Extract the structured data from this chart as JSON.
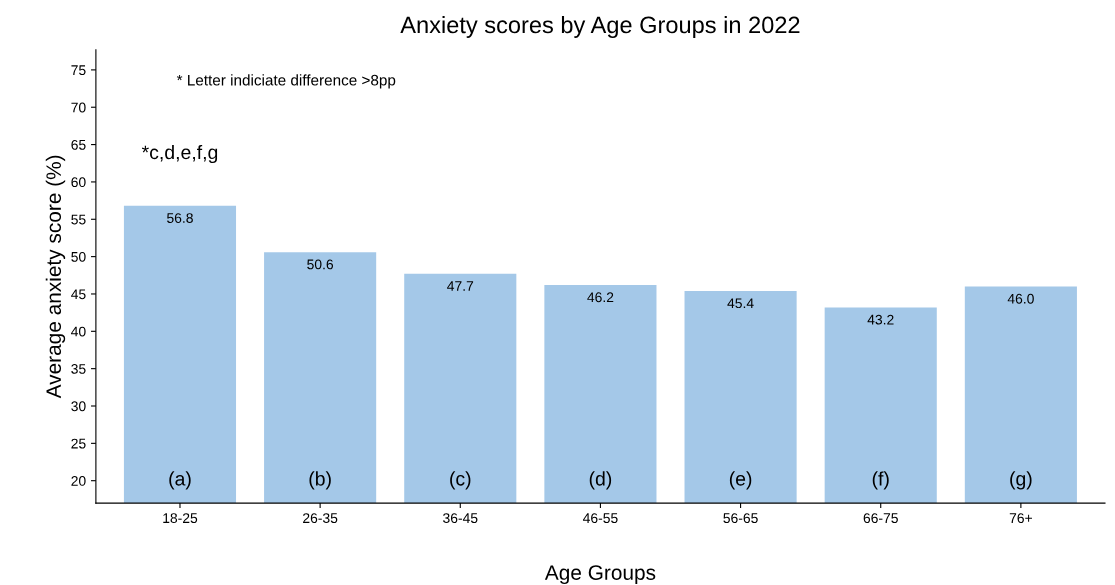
{
  "chart_data": {
    "type": "bar",
    "title": "Anxiety scores by Age Groups in 2022",
    "xlabel": "Age Groups",
    "ylabel": "Average anxiety score (%)",
    "categories": [
      "18-25",
      "26-35",
      "36-45",
      "46-55",
      "56-65",
      "66-75",
      "76+"
    ],
    "values": [
      56.8,
      50.6,
      47.7,
      46.2,
      45.4,
      43.2,
      46.0
    ],
    "value_labels": [
      "56.8",
      "50.6",
      "47.7",
      "46.2",
      "45.4",
      "43.2",
      "46.0"
    ],
    "color": "#a4c8e8",
    "ylim": [
      17,
      77.7
    ],
    "yticks": [
      20,
      25,
      30,
      35,
      40,
      45,
      50,
      55,
      60,
      65,
      70,
      75
    ],
    "grid": false,
    "legend": false,
    "annotations": [
      "* Letter indiciate difference >8pp",
      "*c,d,e,f,g",
      "(a)",
      "(b)",
      "(c)",
      "(d)",
      "(e)",
      "(f)",
      "(g)"
    ]
  }
}
